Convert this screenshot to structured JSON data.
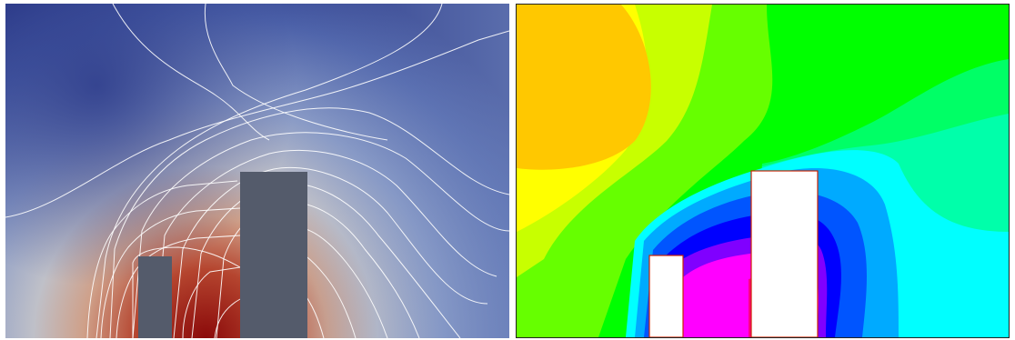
{
  "figure": {
    "left_panel": {
      "description_colormap": "cool-to-warm",
      "colors": {
        "cold": "#2f3e8c",
        "mid": "#c9c9cf",
        "hot": "#8b0a0a",
        "obstacle": "#545b6b",
        "contour": "#ffffff"
      }
    },
    "right_panel": {
      "description_colormap": "rainbow-banded",
      "colors": {
        "band_orange": "#ffc800",
        "band_yellow": "#ffff00",
        "band_yellowgreen": "#c8ff00",
        "band_lightgreen": "#66ff00",
        "band_green": "#00ff00",
        "band_springgreen": "#00ff66",
        "band_aquagreen": "#00ffaa",
        "band_cyan": "#00ffff",
        "band_skyblue": "#00aaff",
        "band_blue": "#0055ff",
        "band_deepblue": "#0000ff",
        "band_violet": "#8000ff",
        "band_magenta": "#ff00ff",
        "band_pink": "#ff0080",
        "band_red": "#ff0000",
        "obstacle": "#ffffff",
        "obstacle_edge": "#cc2200"
      }
    }
  }
}
